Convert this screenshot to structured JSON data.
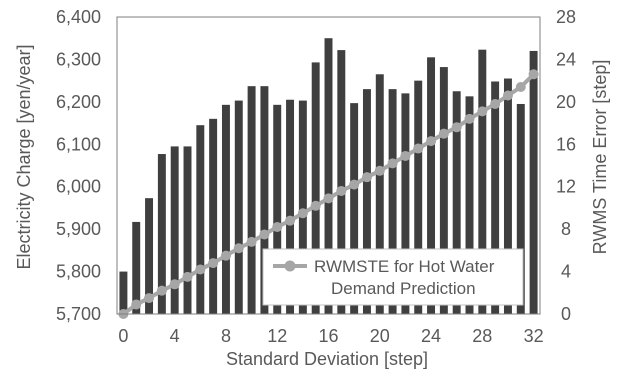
{
  "chart_data": {
    "type": "bar",
    "x": [
      0,
      1,
      2,
      3,
      4,
      5,
      6,
      7,
      8,
      9,
      10,
      11,
      12,
      13,
      14,
      15,
      16,
      17,
      18,
      19,
      20,
      21,
      22,
      23,
      24,
      25,
      26,
      27,
      28,
      29,
      30,
      31,
      32
    ],
    "x_ticks": [
      "0",
      "4",
      "8",
      "12",
      "16",
      "20",
      "24",
      "28",
      "32"
    ],
    "xlim": [
      0,
      32
    ],
    "xlabel": "Standard Deviation [step]",
    "ylabel_left": "Electricity Charge [yen/year]",
    "ylabel_right": "RWMS Time Error [step]",
    "ylim_left": [
      5700,
      6400
    ],
    "ylim_right": [
      0,
      28
    ],
    "y_ticks_left": [
      "5,700",
      "5,800",
      "5,900",
      "6,000",
      "6,100",
      "6,200",
      "6,300",
      "6,400"
    ],
    "y_ticks_right": [
      "0",
      "4",
      "8",
      "12",
      "16",
      "20",
      "24",
      "28"
    ],
    "series": [
      {
        "axis": "left",
        "kind": "bar",
        "color": "#3f3f3f",
        "values": [
          5800,
          5917,
          5973,
          6077,
          6095,
          6095,
          6145,
          6160,
          6193,
          6203,
          6237,
          6237,
          6193,
          6205,
          6203,
          6293,
          6350,
          6322,
          6197,
          6230,
          6265,
          6230,
          6220,
          6250,
          6305,
          6282,
          6225,
          6213,
          6323,
          6248,
          6255,
          6195,
          6320
        ]
      },
      {
        "name": "RWMSTE for Hot Water Demand Prediction",
        "axis": "right",
        "kind": "line",
        "color": "#a6a6a6",
        "values": [
          0,
          0.9,
          1.5,
          2.2,
          2.8,
          3.5,
          4.2,
          4.8,
          5.5,
          6.2,
          6.8,
          7.5,
          8.2,
          8.8,
          9.5,
          10.2,
          10.9,
          11.6,
          12.2,
          12.9,
          13.5,
          14.2,
          14.9,
          15.6,
          16.3,
          17.0,
          17.6,
          18.4,
          19.1,
          19.8,
          20.6,
          21.4,
          22.6
        ]
      }
    ],
    "legend_label_lines": [
      "RWMSTE for Hot Water",
      "Demand Prediction"
    ],
    "legend_position": "lower-right",
    "grid": false
  }
}
